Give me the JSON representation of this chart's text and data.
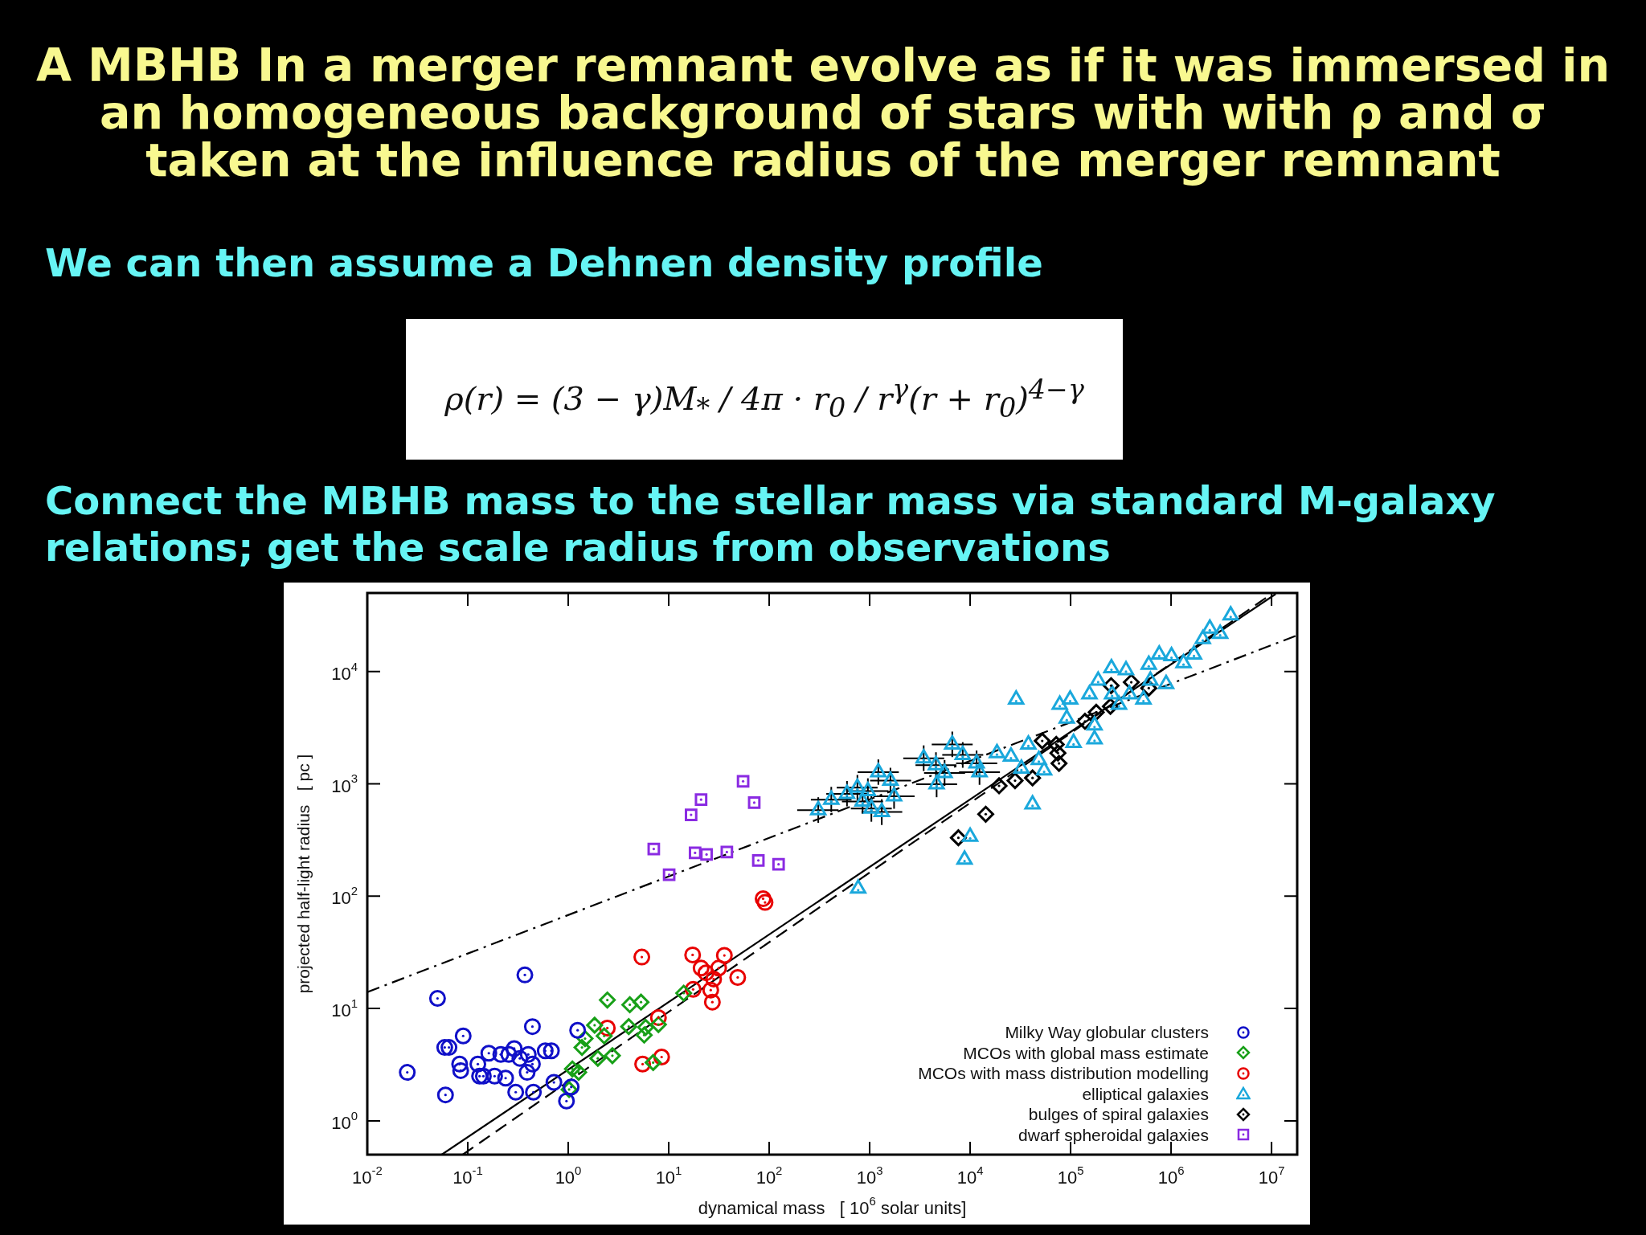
{
  "chart_data": {
    "type": "scatter",
    "title": "A MBHB In a merger remnant evolve as if it was immersed in an homogeneous background of stars with with ρ and σ taken at the influence radius of the merger remnant",
    "annotations": [
      "We can then assume a Dehnen density profile",
      "ρ(r) = (3 − γ)M$_{*}$ / 4π · r$_{0}$ / r$^{γ}$(r + r$_{0}$)$^{4−γ}$",
      "Connect the MBHB mass to the stellar mass via standard M-galaxy relations; get the scale radius from observations"
    ],
    "xlabel": "dynamical mass   [ 10$^{6}$ solar units]",
    "ylabel": "projected half-light radius   [ pc ]",
    "log": "xy",
    "grid": false,
    "legend": "bottom right",
    "xlim": [
      0.01,
      18000000
    ],
    "ylim": [
      0.5,
      50000
    ],
    "xticks": [
      {
        "value": 0.01,
        "label": "10$^{-2}$"
      },
      {
        "value": 0.1,
        "label": "10$^{-1}$"
      },
      {
        "value": 1,
        "label": "10$^{0}$"
      },
      {
        "value": 10,
        "label": "10$^{1}$"
      },
      {
        "value": 100,
        "label": "10$^{2}$"
      },
      {
        "value": 1000,
        "label": "10$^{3}$"
      },
      {
        "value": 10000,
        "label": "10$^{4}$"
      },
      {
        "value": 100000,
        "label": "10$^{5}$"
      },
      {
        "value": 1000000,
        "label": "10$^{6}$"
      },
      {
        "value": 10000000,
        "label": "10$^{7}$"
      }
    ],
    "yticks": [
      {
        "value": 1,
        "label": "10$^{0}$"
      },
      {
        "value": 10,
        "label": "10$^{1}$"
      },
      {
        "value": 100,
        "label": "10$^{2}$"
      },
      {
        "value": 1000,
        "label": "10$^{3}$"
      },
      {
        "value": 10000,
        "label": "10$^{4}$"
      }
    ],
    "series": [
      {
        "type": "line",
        "color": "#000000",
        "line_style": "solid",
        "x": [
          0.055,
          11000000
        ],
        "values": [
          0.5,
          49000
        ]
      },
      {
        "type": "line",
        "color": "#000000",
        "line_style": "dashed",
        "x": [
          0.089,
          10000000
        ],
        "values": [
          0.5,
          49000
        ]
      },
      {
        "type": "line",
        "color": "#000000",
        "line_style": "dashdot",
        "x": [
          0.01,
          18000000
        ],
        "values": [
          14,
          21000
        ]
      },
      {
        "name": "Milky Way globular clusters",
        "color": "#1010c8",
        "marker": "circle",
        "x": [
          0.025,
          0.05,
          0.37,
          0.06,
          0.09,
          0.059,
          0.065,
          0.083,
          0.085,
          0.126,
          0.131,
          0.143,
          0.162,
          0.185,
          0.213,
          0.238,
          0.256,
          0.29,
          0.3,
          0.33,
          0.39,
          0.4,
          0.44,
          0.44,
          0.45,
          0.59,
          0.68,
          0.72,
          1.07,
          0.96,
          1.24
        ],
        "values": [
          2.7,
          12.3,
          19.9,
          1.7,
          5.7,
          4.5,
          4.5,
          3.2,
          2.8,
          3.2,
          2.5,
          2.5,
          4.0,
          2.5,
          3.9,
          2.4,
          3.9,
          4.4,
          1.8,
          3.6,
          2.7,
          3.9,
          6.9,
          3.2,
          1.8,
          4.2,
          4.2,
          2.2,
          2.0,
          1.5,
          6.4
        ]
      },
      {
        "name": "MCOs with global mass estimate",
        "color": "#18a018",
        "marker": "diamond",
        "x": [
          2.45,
          4.1,
          5.3,
          14.1,
          1.83,
          4.0,
          5.9,
          1.47,
          1.37,
          2.28,
          5.7,
          7.9,
          1.97,
          2.75,
          1.1,
          1.27,
          1.02,
          7.0
        ],
        "values": [
          11.9,
          10.8,
          11.4,
          13.7,
          7.1,
          6.9,
          6.8,
          5.4,
          4.5,
          5.7,
          5.8,
          7.2,
          3.6,
          3.8,
          2.9,
          2.7,
          1.9,
          3.3
        ]
      },
      {
        "name": "MCOs with mass distribution modelling",
        "color": "#e80000",
        "marker": "circle",
        "x": [
          87,
          91,
          5.4,
          17.3,
          35.8,
          21,
          23.5,
          31.4,
          28,
          48.6,
          17.5,
          26.2,
          27.2,
          2.45,
          7.9,
          5.5,
          8.5
        ],
        "values": [
          95,
          88,
          28.7,
          30,
          29.7,
          22.9,
          20.8,
          22.9,
          18.3,
          18.9,
          14.8,
          14.6,
          11.4,
          6.7,
          8.3,
          3.2,
          3.7
        ]
      },
      {
        "name": "elliptical galaxies",
        "color": "#1aa8dc",
        "marker": "triangle",
        "x": [
          308,
          415,
          595,
          755,
          960,
          1220,
          1320,
          1610,
          1750,
          1040,
          851,
          3450,
          4570,
          4640,
          5570,
          6640,
          8440,
          11600,
          12400,
          769,
          8800,
          10000,
          41800,
          28700,
          18500,
          25500,
          32400,
          38000,
          54500,
          48300,
          78000,
          99000,
          91600,
          107000,
          173000,
          173000,
          154000,
          188000,
          255000,
          356000,
          303000,
          531000,
          600000,
          762000,
          1010000,
          893000,
          1330000,
          1690000,
          2070000,
          2430000,
          3080000,
          3920000,
          259000,
          385000,
          622000
        ],
        "values": [
          584,
          722,
          814,
          925,
          862,
          1270,
          563,
          1067,
          774,
          604,
          697,
          1690,
          1470,
          993,
          1250,
          2245,
          1810,
          1520,
          1270,
          117,
          212,
          338,
          658,
          5640,
          1880,
          1750,
          1370,
          2245,
          1320,
          1630,
          5070,
          5640,
          3820,
          2320,
          2500,
          3310,
          6270,
          8320,
          10700,
          10300,
          5070,
          5640,
          11500,
          14200,
          13700,
          7740,
          11900,
          14200,
          19500,
          24100,
          21700,
          31600,
          6270,
          6270,
          8320
        ],
        "errors": [
          [
            450,
            760
          ],
          [
            560,
            940
          ],
          [
            630,
            1060
          ],
          [
            710,
            1200
          ],
          [
            660,
            1120
          ],
          [
            980,
            1650
          ],
          [
            430,
            730
          ],
          [
            820,
            1390
          ],
          [
            600,
            1010
          ],
          [
            460,
            790
          ],
          [
            540,
            910
          ],
          [
            1300,
            2200
          ],
          [
            1130,
            1910
          ],
          [
            760,
            1290
          ],
          [
            960,
            1630
          ],
          [
            1730,
            2920
          ],
          [
            1390,
            2350
          ],
          [
            1170,
            1980
          ],
          [
            980,
            1650
          ],
          null,
          null,
          null,
          null,
          null,
          null,
          null,
          null,
          null,
          null,
          null,
          null,
          null,
          null,
          null,
          null,
          null,
          null,
          null,
          null,
          null,
          null,
          null,
          null,
          null,
          null,
          null,
          null,
          null,
          null,
          null,
          null,
          null,
          null,
          null,
          null
        ],
        "xerrors": [
          [
            190,
            490
          ],
          [
            260,
            660
          ],
          [
            370,
            950
          ],
          [
            470,
            1200
          ],
          [
            600,
            1540
          ],
          [
            760,
            1950
          ],
          [
            830,
            2110
          ],
          [
            1010,
            2580
          ],
          [
            1090,
            2800
          ],
          [
            650,
            1660
          ],
          [
            530,
            1360
          ],
          [
            2160,
            5520
          ],
          [
            2860,
            7310
          ],
          [
            2900,
            7420
          ],
          [
            3480,
            8910
          ],
          [
            4150,
            10600
          ],
          [
            5280,
            13500
          ],
          [
            7250,
            18600
          ],
          [
            7750,
            19800
          ],
          null,
          null,
          null,
          null,
          null,
          null,
          null,
          null,
          null,
          null,
          null,
          null,
          null,
          null,
          null,
          null,
          null,
          null,
          null,
          null,
          null,
          null,
          null,
          null,
          null,
          null,
          null,
          null,
          null,
          null,
          null,
          null,
          null,
          null,
          null,
          null
        ]
      },
      {
        "name": "bulges of spiral galaxies",
        "color": "#000000",
        "marker": "diamond",
        "x": [
          7640,
          14300,
          19400,
          28000,
          41800,
          52200,
          72000,
          76700,
          74800,
          139000,
          180000,
          249000,
          253000,
          402000,
          600000
        ],
        "values": [
          331,
          537,
          960,
          1067,
          1129,
          2410,
          2245,
          1520,
          1880,
          3600,
          4340,
          4890,
          7490,
          8030,
          7110
        ]
      },
      {
        "name": "dwarf spheroidal galaxies",
        "color": "#8a2be2",
        "marker": "square",
        "x": [
          55,
          21,
          16.7,
          71,
          7.1,
          18.3,
          23.8,
          37.9,
          78,
          124,
          10.1
        ],
        "values": [
          1054,
          724,
          530,
          680,
          263,
          243,
          235,
          247,
          208,
          192,
          155
        ]
      }
    ]
  }
}
